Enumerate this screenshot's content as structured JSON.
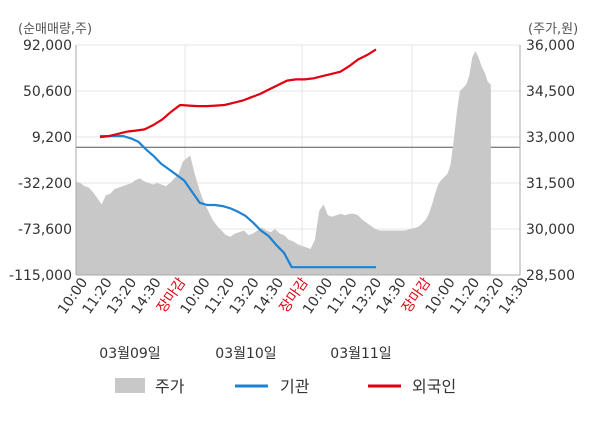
{
  "chart_data": {
    "type": "line",
    "left_axis_unit": "(순매매량,주)",
    "right_axis_unit": "(주가,원)",
    "left_ticks": [
      92000,
      50600,
      9200,
      -32200,
      -73600,
      -115000
    ],
    "left_tick_labels": [
      "92,000",
      "50,600",
      "9,200",
      "-32,200",
      "-73,600",
      "-115,000"
    ],
    "right_ticks": [
      36000,
      34500,
      33000,
      31500,
      30000,
      28500
    ],
    "right_tick_labels": [
      "36,000",
      "34,500",
      "33,000",
      "31,500",
      "30,000",
      "28,500"
    ],
    "ylim_left": [
      -115000,
      92000
    ],
    "ylim_right": [
      28500,
      36000
    ],
    "x_tick_labels": [
      {
        "text": "10:00",
        "close": false
      },
      {
        "text": "11:20",
        "close": false
      },
      {
        "text": "13:20",
        "close": false
      },
      {
        "text": "14:30",
        "close": false
      },
      {
        "text": "장마감",
        "close": true
      },
      {
        "text": "10:00",
        "close": false
      },
      {
        "text": "11:20",
        "close": false
      },
      {
        "text": "13:20",
        "close": false
      },
      {
        "text": "14:30",
        "close": false
      },
      {
        "text": "장마감",
        "close": true
      },
      {
        "text": "10:00",
        "close": false
      },
      {
        "text": "11:20",
        "close": false
      },
      {
        "text": "13:20",
        "close": false
      },
      {
        "text": "14:30",
        "close": false
      },
      {
        "text": "장마감",
        "close": true
      },
      {
        "text": "10:00",
        "close": false
      },
      {
        "text": "11:20",
        "close": false
      },
      {
        "text": "13:20",
        "close": false
      },
      {
        "text": "14:30",
        "close": false
      }
    ],
    "date_labels": [
      "03월09일",
      "03월10일",
      "03월11일"
    ],
    "price_series": {
      "name": "주가",
      "color": "#c8c8c8",
      "values": [
        31550,
        31500,
        31400,
        31350,
        31200,
        31000,
        30800,
        31100,
        31150,
        31300,
        31350,
        31400,
        31450,
        31500,
        31600,
        31650,
        31550,
        31500,
        31450,
        31500,
        31450,
        31400,
        31500,
        31650,
        31800,
        32200,
        32400,
        31800,
        31300,
        30900,
        30600,
        30300,
        30100,
        29950,
        29800,
        29750,
        29850,
        29900,
        29950,
        29800,
        29850,
        29950,
        30050,
        29950,
        29900,
        30000,
        29850,
        29800,
        29650,
        29600,
        29500,
        29450,
        29400,
        29350,
        29650,
        30600,
        30800,
        30450,
        30400,
        30450,
        30500,
        30450,
        30500,
        30500,
        30450,
        30300,
        30200,
        30100,
        30000,
        29950,
        29950,
        29950,
        29950,
        29950,
        29950,
        29950,
        30000,
        30050,
        30100,
        30200,
        30300,
        30500,
        30800,
        31150,
        31450,
        31600,
        31700,
        31800,
        32100,
        32900,
        33800,
        34500,
        34600,
        34700,
        35000,
        35600,
        35800,
        35600,
        35300,
        35100,
        34800,
        34700
      ]
    },
    "series": [
      {
        "name": "기관",
        "color": "#1c82d2",
        "axis": "left",
        "values": [
          10000,
          10000,
          10000,
          10000,
          8000,
          5000,
          -2000,
          -8000,
          -15000,
          -20000,
          -25000,
          -30000,
          -40000,
          -50000,
          -52000,
          -52000,
          -53000,
          -55000,
          -58000,
          -62000,
          -68000,
          -75000,
          -80000,
          -88000,
          -95000,
          -108000,
          -108000,
          -108000,
          -108000,
          -108000,
          -108000,
          -108000,
          -108000,
          -108000,
          -108000,
          -108000,
          -108000
        ]
      },
      {
        "name": "외국인",
        "color": "#e00011",
        "axis": "left",
        "values": [
          9000,
          10000,
          12000,
          14000,
          15000,
          16000,
          20000,
          25000,
          32000,
          38000,
          37500,
          37000,
          37000,
          37500,
          38000,
          40000,
          42000,
          45000,
          48000,
          52000,
          56000,
          60000,
          61000,
          61000,
          62000,
          64000,
          66000,
          68000,
          73000,
          79000,
          83000,
          88000
        ]
      }
    ]
  }
}
